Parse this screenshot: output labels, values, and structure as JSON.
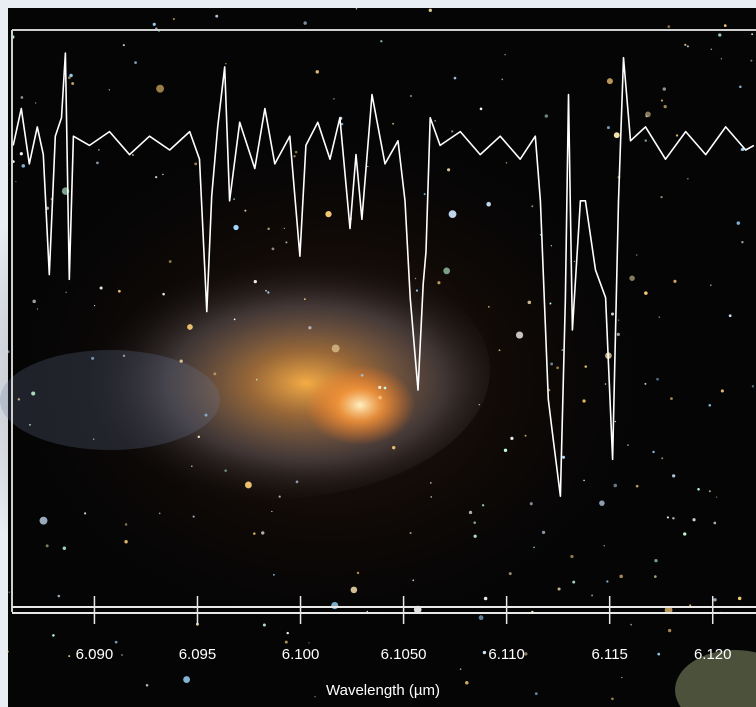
{
  "chart_data": {
    "type": "line",
    "x_label": "Wavelength (µm)",
    "xlim": [
      6.086,
      6.1221
    ],
    "ylim": [
      0,
      1.25
    ],
    "xticks": [
      {
        "value": 6.09,
        "label": "6.090"
      },
      6.095,
      {
        "value": 6.1,
        "label": "6.100"
      },
      {
        "value": 6.105,
        "label": "6.1050"
      },
      {
        "value": 6.11,
        "label": "6.110"
      },
      6.115,
      {
        "value": 6.12,
        "label": "6.120"
      }
    ],
    "series": [
      {
        "color": "#ffffff",
        "x": [
          6.08606,
          6.08645,
          6.08684,
          6.08723,
          6.08752,
          6.08781,
          6.0881,
          6.0884,
          6.08859,
          6.08878,
          6.08898,
          6.08976,
          6.09073,
          6.0917,
          6.09267,
          6.09365,
          6.09462,
          6.0951,
          6.09545,
          6.09569,
          6.09598,
          6.09632,
          6.09656,
          6.09705,
          6.09778,
          6.09827,
          6.09875,
          6.09948,
          6.09997,
          6.10026,
          6.10084,
          6.10143,
          6.10191,
          6.1024,
          6.10269,
          6.10298,
          6.10347,
          6.1041,
          6.10473,
          6.10507,
          6.10532,
          6.1057,
          6.10595,
          6.10609,
          6.10629,
          6.10677,
          6.10775,
          6.10872,
          6.10969,
          6.11066,
          6.11139,
          6.11164,
          6.11202,
          6.11227,
          6.11261,
          6.11285,
          6.113,
          6.11319,
          6.11358,
          6.11382,
          6.11431,
          6.1148,
          6.11514,
          6.11543,
          6.11567,
          6.11601,
          6.11674,
          6.11771,
          6.11869,
          6.11966,
          6.12063,
          6.1216,
          6.122
        ],
        "values": [
          1.0,
          1.08,
          0.96,
          1.04,
          0.98,
          0.72,
          1.02,
          1.06,
          1.2,
          0.71,
          1.02,
          1.0,
          1.03,
          0.98,
          1.02,
          0.99,
          1.03,
          0.97,
          0.64,
          0.89,
          1.04,
          1.17,
          0.88,
          1.05,
          0.95,
          1.08,
          0.96,
          1.02,
          0.76,
          1.0,
          1.05,
          0.97,
          1.06,
          0.82,
          0.98,
          0.84,
          1.11,
          0.96,
          1.01,
          0.88,
          0.67,
          0.47,
          0.7,
          0.77,
          1.06,
          1.0,
          1.03,
          0.98,
          1.02,
          0.97,
          1.02,
          0.88,
          0.45,
          0.36,
          0.24,
          0.67,
          1.11,
          0.6,
          0.88,
          0.88,
          0.73,
          0.67,
          0.32,
          0.88,
          1.19,
          1.01,
          1.04,
          0.97,
          1.03,
          0.98,
          1.04,
          0.99,
          1.0
        ]
      }
    ]
  }
}
